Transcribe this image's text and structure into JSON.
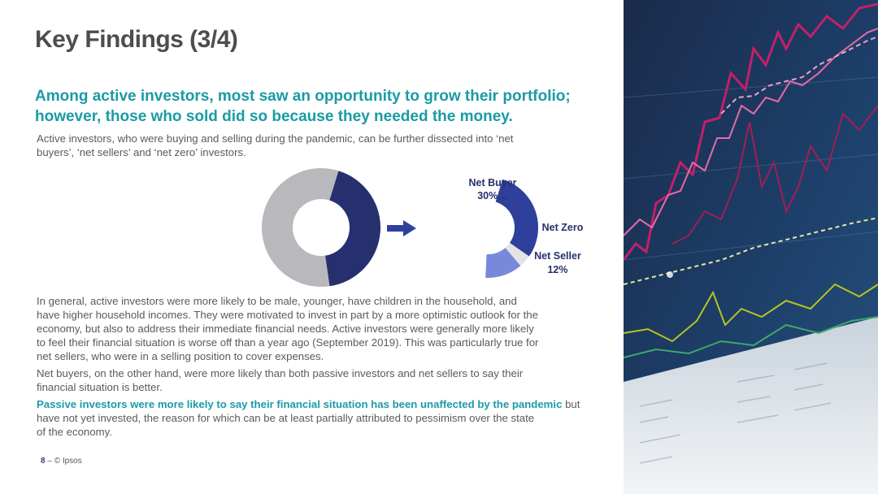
{
  "slide": {
    "title": "Key Findings (3/4)",
    "subtitle_line1": "Among active investors, most saw an opportunity to grow their portfolio;",
    "subtitle_line2": "however, those who sold did so because they needed the money.",
    "intro_line1": "Active investors, who were buying and selling during the pandemic, can be further dissected into ‘net",
    "intro_line2": "buyers’, ‘net sellers’ and ‘net zero’ investors.",
    "general_lines": [
      "In general, active investors were more likely to be male, younger, have children in the household, and",
      "have higher household incomes. They were motivated to invest in part by a more optimistic outlook for the",
      "economy, but also to address their immediate financial needs.  Active investors were generally more likely",
      "to feel their financial situation is worse off than a year ago (September 2019). This was particularly true for",
      "net sellers, who were in a selling position to cover expenses."
    ],
    "netbuyers_line1": "Net buyers, on the other hand, were more likely than both passive investors and net sellers to say their",
    "netbuyers_line2": "financial situation is better.",
    "passive_highlight": "Passive investors were more likely to say their financial situation has been unaffected by the pandemic",
    "passive_rest1": " but",
    "passive_rest2": "have not yet invested, the reason for which can be at least partially attributed to pessimism over the state",
    "passive_rest3": "of the economy."
  },
  "footer": {
    "page": "8",
    "sep": " – ",
    "copyright": "© Ipsos"
  },
  "colors": {
    "dark_navy": "#26306f",
    "gray": "#b9b9bd",
    "net_buyer": "#2e3f9c",
    "net_zero": "#e4e4e6",
    "net_seller": "#7889dc",
    "arrow": "#2e3f9c",
    "label": "#26306f"
  },
  "chart_data": [
    {
      "type": "pie",
      "variant": "donut",
      "categories": [
        "",
        ""
      ],
      "values": [
        43,
        57
      ],
      "colors": [
        "#26306f",
        "#b9b9bd"
      ]
    },
    {
      "type": "pie",
      "variant": "half-donut",
      "categories": [
        "Net Buyer",
        "Net Zero",
        "Net Seller"
      ],
      "values": [
        30,
        4,
        12
      ],
      "data_labels": [
        "30%…",
        "",
        "12%"
      ],
      "colors": [
        "#2e3f9c",
        "#e4e4e6",
        "#7889dc"
      ]
    }
  ]
}
